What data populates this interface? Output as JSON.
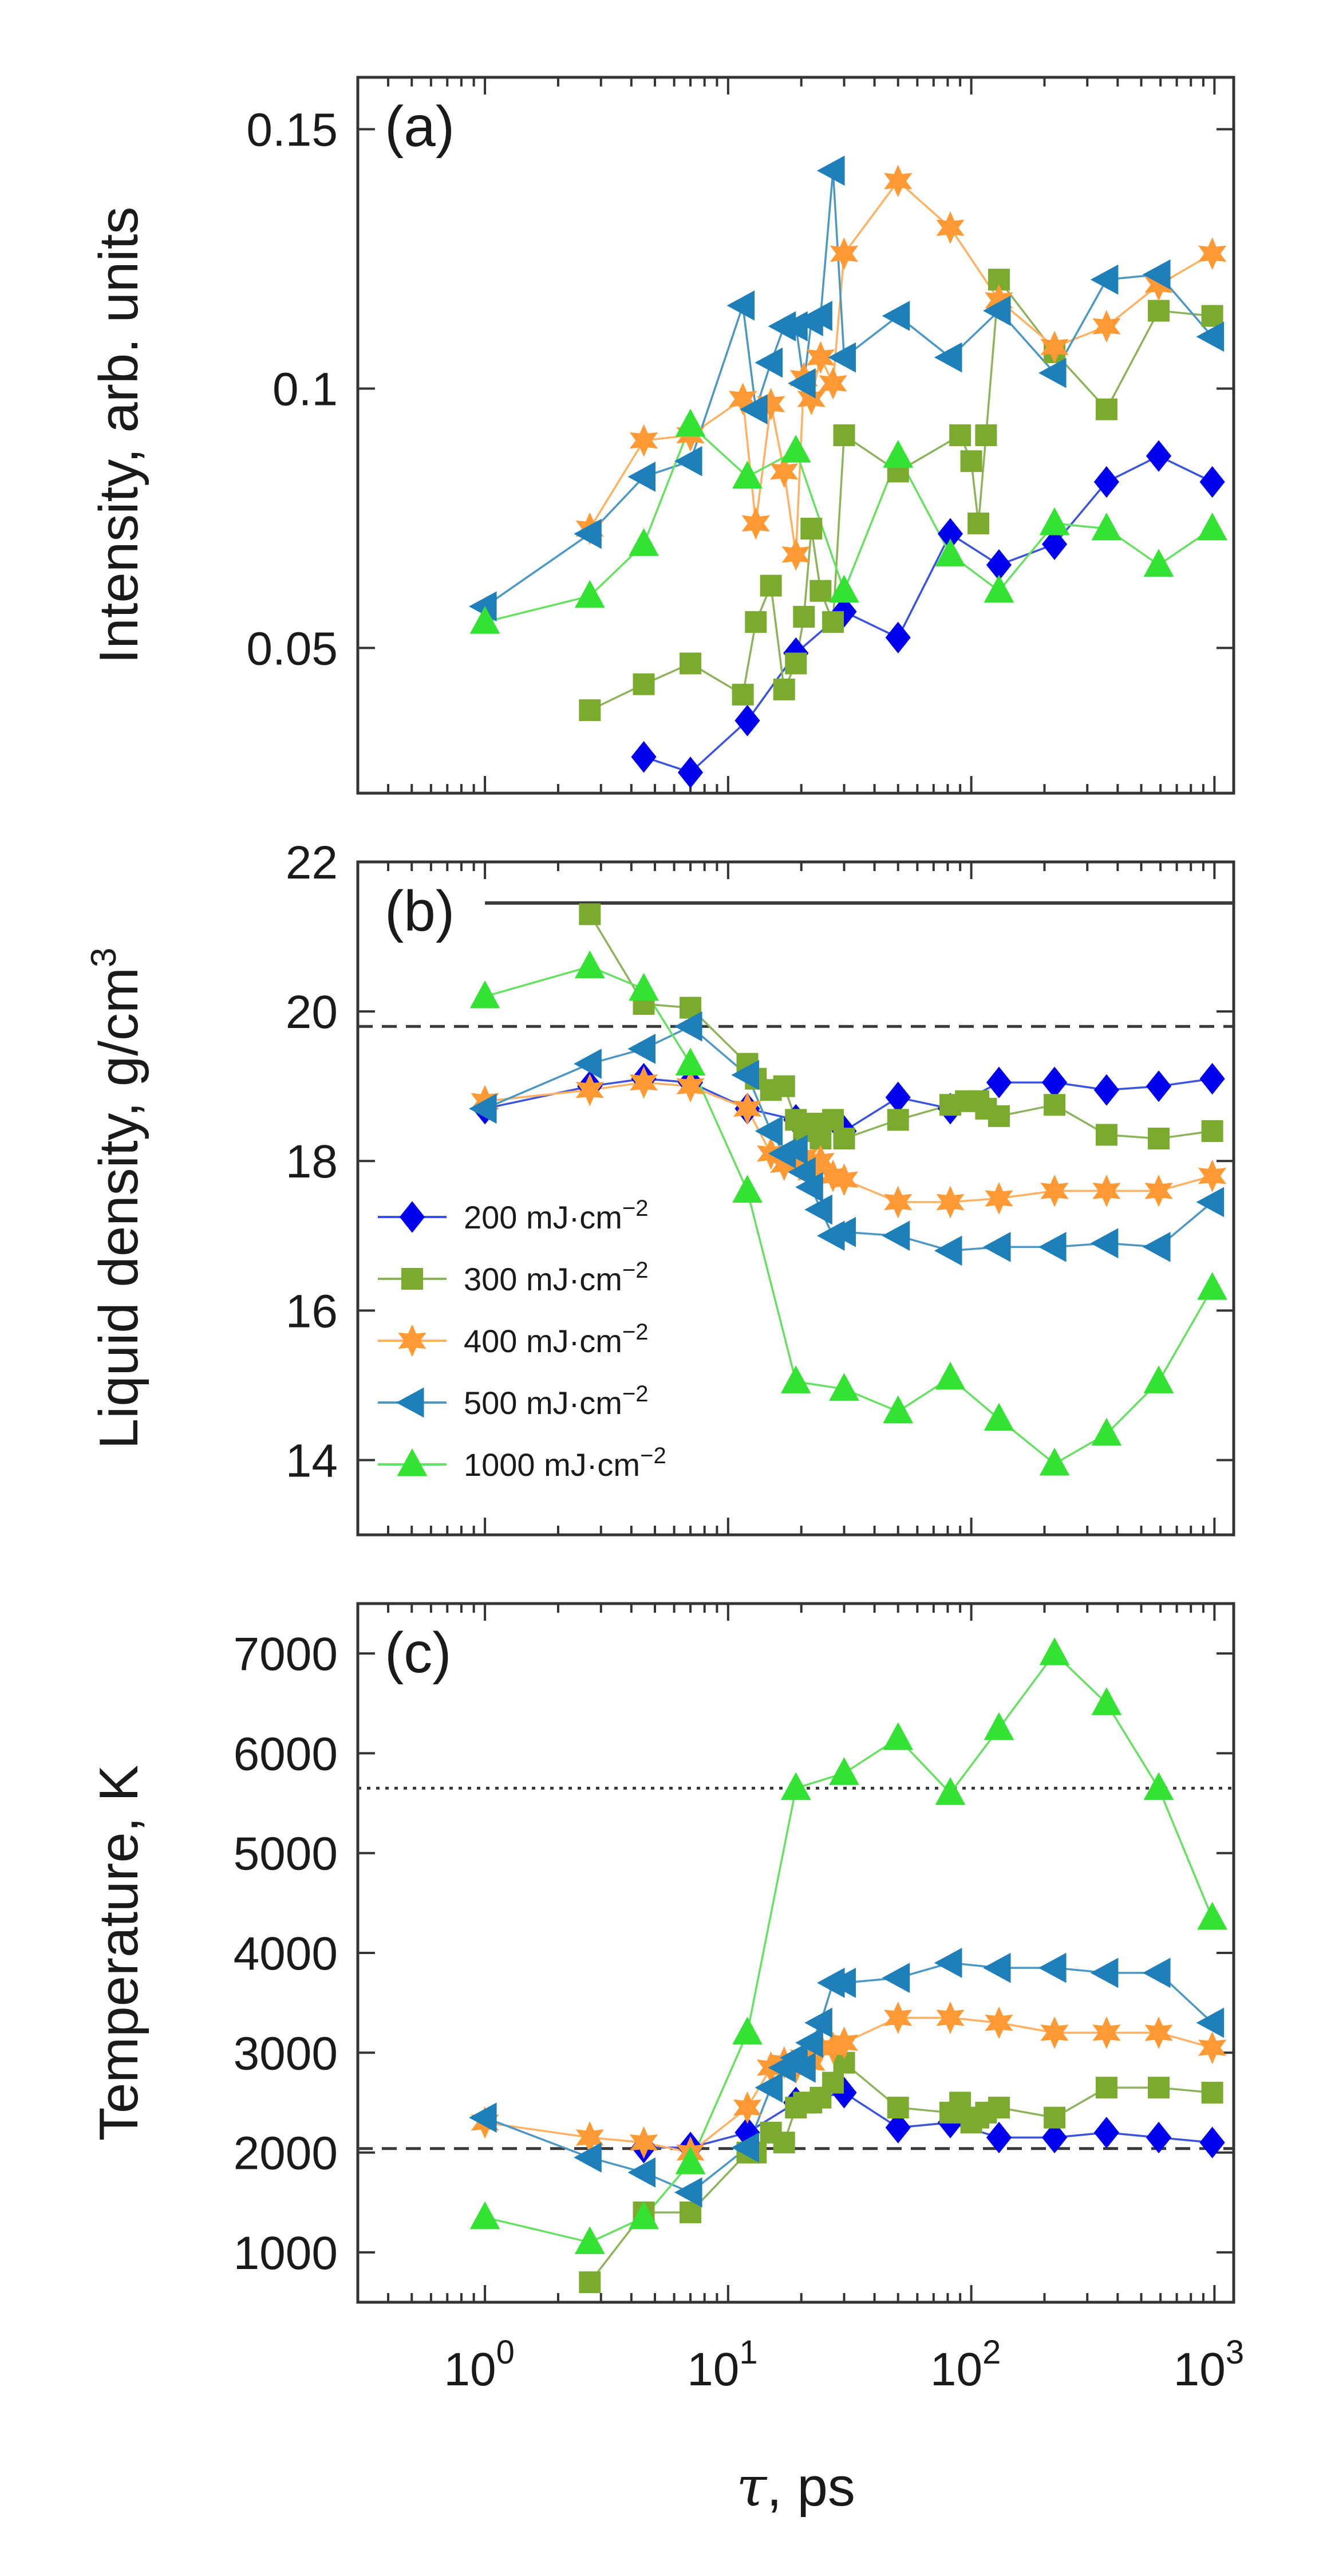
{
  "chart_data": [
    {
      "type": "line",
      "panel_label": "(a)",
      "ylabel": "Intensity, arb. units",
      "xscale": "log",
      "xlim": [
        0.3,
        1200
      ],
      "ylim": [
        0.022,
        0.16
      ],
      "yticks": [
        {
          "v": 0.05,
          "label": "0.05"
        },
        {
          "v": 0.1,
          "label": "0.1"
        },
        {
          "v": 0.15,
          "label": "0.15"
        }
      ],
      "series": [
        {
          "name": "200 mJ·cm⁻²",
          "x": [
            4.5,
            7,
            12,
            19,
            30,
            50,
            82,
            130,
            220,
            360,
            590,
            980
          ],
          "y": [
            0.029,
            0.026,
            0.036,
            0.049,
            0.057,
            0.052,
            0.072,
            0.066,
            0.07,
            0.082,
            0.087,
            0.082
          ]
        },
        {
          "name": "300 mJ·cm⁻²",
          "x": [
            2.7,
            4.5,
            7,
            11.5,
            13,
            15,
            17,
            19,
            20.5,
            22,
            24,
            27,
            30,
            50,
            90,
            100,
            107,
            115,
            130,
            220,
            360,
            590,
            980
          ],
          "y": [
            0.038,
            0.043,
            0.047,
            0.041,
            0.055,
            0.062,
            0.042,
            0.047,
            0.056,
            0.073,
            0.061,
            0.055,
            0.091,
            0.084,
            0.091,
            0.086,
            0.074,
            0.091,
            0.121,
            0.107,
            0.096,
            0.115,
            0.114
          ]
        },
        {
          "name": "400 mJ·cm⁻²",
          "x": [
            2.7,
            4.5,
            7,
            11.5,
            13,
            15,
            17,
            19,
            20.5,
            22,
            24,
            27,
            30,
            50,
            82,
            130,
            220,
            360,
            590,
            980
          ],
          "y": [
            0.073,
            0.09,
            0.091,
            0.098,
            0.074,
            0.097,
            0.084,
            0.068,
            0.102,
            0.098,
            0.106,
            0.101,
            0.126,
            0.14,
            0.131,
            0.117,
            0.108,
            0.112,
            0.12,
            0.126
          ]
        },
        {
          "name": "500 mJ·cm⁻²",
          "x": [
            1,
            2.7,
            4.5,
            7,
            11.5,
            13,
            15,
            17,
            19,
            20.5,
            22,
            24,
            27,
            30,
            50,
            82,
            130,
            220,
            360,
            590,
            980
          ],
          "y": [
            0.058,
            0.072,
            0.083,
            0.086,
            0.116,
            0.096,
            0.105,
            0.112,
            0.112,
            0.101,
            0.113,
            0.114,
            0.142,
            0.106,
            0.114,
            0.106,
            0.115,
            0.103,
            0.121,
            0.122,
            0.11
          ]
        },
        {
          "name": "1000 mJ·cm⁻²",
          "x": [
            1,
            2.7,
            4.5,
            7,
            12,
            19,
            30,
            50,
            82,
            130,
            220,
            360,
            590,
            980
          ],
          "y": [
            0.055,
            0.06,
            0.07,
            0.093,
            0.083,
            0.088,
            0.061,
            0.087,
            0.068,
            0.061,
            0.074,
            0.073,
            0.066,
            0.073
          ]
        }
      ]
    },
    {
      "type": "line",
      "panel_label": "(b)",
      "ylabel": "Liquid density, g/cm",
      "ylabel_superscript": "3",
      "xscale": "log",
      "xlim": [
        0.3,
        1200
      ],
      "ylim": [
        13,
        22
      ],
      "yticks": [
        {
          "v": 14,
          "label": "14"
        },
        {
          "v": 16,
          "label": "16"
        },
        {
          "v": 18,
          "label": "18"
        },
        {
          "v": 20,
          "label": "20"
        },
        {
          "v": 22,
          "label": "22"
        }
      ],
      "reference_lines": [
        {
          "name": "solid-density-line",
          "y": 21.45,
          "style": "solid",
          "x_from": 1
        },
        {
          "name": "melt-density-line",
          "y": 19.8,
          "style": "dashed"
        }
      ],
      "legend": {
        "position": "lower-left",
        "entries": [
          {
            "text": "200 mJ·cm",
            "sup": "−2"
          },
          {
            "text": "300 mJ·cm",
            "sup": "−2"
          },
          {
            "text": "400 mJ·cm",
            "sup": "−2"
          },
          {
            "text": "500 mJ·cm",
            "sup": "−2"
          },
          {
            "text": "1000 mJ·cm",
            "sup": "−2"
          }
        ]
      },
      "series": [
        {
          "name": "200 mJ·cm⁻²",
          "x": [
            1,
            2.7,
            4.5,
            7,
            12,
            19,
            30,
            50,
            82,
            130,
            220,
            360,
            590,
            980
          ],
          "y": [
            18.7,
            19.0,
            19.1,
            19.05,
            18.7,
            18.55,
            18.4,
            18.85,
            18.7,
            19.05,
            19.05,
            18.95,
            19.0,
            19.1
          ]
        },
        {
          "name": "300 mJ·cm⁻²",
          "x": [
            2.7,
            4.5,
            7,
            12,
            13,
            15,
            17,
            19,
            20.5,
            22,
            24,
            27,
            30,
            50,
            82,
            95,
            107,
            115,
            130,
            220,
            360,
            590,
            980
          ],
          "y": [
            21.3,
            20.1,
            20.05,
            19.3,
            19.1,
            18.95,
            19.0,
            18.55,
            18.4,
            18.5,
            18.3,
            18.55,
            18.3,
            18.55,
            18.75,
            18.8,
            18.8,
            18.7,
            18.6,
            18.75,
            18.35,
            18.3,
            18.4
          ]
        },
        {
          "name": "400 mJ·cm⁻²",
          "x": [
            1,
            2.7,
            4.5,
            7,
            12,
            15,
            17,
            19,
            20.5,
            22,
            24,
            27,
            30,
            50,
            82,
            130,
            220,
            360,
            590,
            980
          ],
          "y": [
            18.8,
            18.95,
            19.05,
            19.0,
            18.7,
            18.1,
            17.95,
            18.0,
            18.05,
            17.85,
            18.0,
            17.8,
            17.75,
            17.45,
            17.45,
            17.5,
            17.6,
            17.6,
            17.6,
            17.8
          ]
        },
        {
          "name": "500 mJ·cm⁻²",
          "x": [
            1,
            2.7,
            4.5,
            7,
            12,
            15,
            17,
            19,
            20.5,
            22,
            24,
            27,
            30,
            50,
            82,
            130,
            220,
            360,
            590,
            980
          ],
          "y": [
            18.7,
            19.3,
            19.5,
            19.8,
            19.15,
            18.4,
            18.1,
            18.15,
            17.85,
            17.65,
            17.35,
            17.0,
            17.05,
            17.0,
            16.8,
            16.85,
            16.85,
            16.9,
            16.85,
            17.45
          ]
        },
        {
          "name": "1000 mJ·cm⁻²",
          "x": [
            1,
            2.7,
            4.5,
            7,
            12,
            19,
            30,
            50,
            82,
            130,
            220,
            360,
            590,
            980
          ],
          "y": [
            20.2,
            20.6,
            20.3,
            19.3,
            17.6,
            15.05,
            14.95,
            14.65,
            15.1,
            14.55,
            13.95,
            14.35,
            15.05,
            16.3
          ]
        }
      ]
    },
    {
      "type": "line",
      "panel_label": "(c)",
      "ylabel": "Temperature, K",
      "xlabel_symbol": "τ",
      "xlabel": ", ps",
      "xscale": "log",
      "xlim": [
        0.3,
        1200
      ],
      "ylim": [
        500,
        7500
      ],
      "yticks": [
        {
          "v": 1000,
          "label": "1000"
        },
        {
          "v": 2000,
          "label": "2000"
        },
        {
          "v": 3000,
          "label": "3000"
        },
        {
          "v": 4000,
          "label": "4000"
        },
        {
          "v": 5000,
          "label": "5000"
        },
        {
          "v": 6000,
          "label": "6000"
        },
        {
          "v": 7000,
          "label": "7000"
        }
      ],
      "xticks": [
        {
          "v": 1,
          "base": "10",
          "exp": "0"
        },
        {
          "v": 10,
          "base": "10",
          "exp": "1"
        },
        {
          "v": 100,
          "base": "10",
          "exp": "2"
        },
        {
          "v": 1000,
          "base": "10",
          "exp": "3"
        }
      ],
      "reference_lines": [
        {
          "name": "critical-temperature-line",
          "y": 5650,
          "style": "dotted"
        },
        {
          "name": "melting-temperature-line",
          "y": 2040,
          "style": "dashed"
        }
      ],
      "series": [
        {
          "name": "200 mJ·cm⁻²",
          "x": [
            4.5,
            7,
            12,
            19,
            30,
            50,
            82,
            130,
            220,
            360,
            590,
            980
          ],
          "y": [
            2050,
            2050,
            2200,
            2500,
            2600,
            2250,
            2300,
            2150,
            2150,
            2200,
            2150,
            2100
          ]
        },
        {
          "name": "300 mJ·cm⁻²",
          "x": [
            2.7,
            4.5,
            7,
            12,
            13,
            15,
            17,
            19,
            20.5,
            22,
            24,
            27,
            30,
            50,
            82,
            90,
            100,
            107,
            115,
            130,
            220,
            360,
            590,
            980
          ],
          "y": [
            700,
            1400,
            1400,
            2000,
            2000,
            2200,
            2100,
            2450,
            2500,
            2500,
            2550,
            2700,
            2900,
            2450,
            2400,
            2500,
            2300,
            2350,
            2400,
            2450,
            2350,
            2650,
            2650,
            2600
          ]
        },
        {
          "name": "400 mJ·cm⁻²",
          "x": [
            1,
            2.7,
            4.5,
            7,
            12,
            15,
            17,
            19,
            20.5,
            22,
            24,
            27,
            30,
            50,
            82,
            130,
            220,
            360,
            590,
            980
          ],
          "y": [
            2300,
            2150,
            2100,
            2000,
            2450,
            2850,
            2900,
            2850,
            2950,
            2900,
            3050,
            3050,
            3100,
            3350,
            3350,
            3300,
            3200,
            3200,
            3200,
            3050
          ]
        },
        {
          "name": "500 mJ·cm⁻²",
          "x": [
            1,
            2.7,
            4.5,
            7,
            12,
            15,
            17,
            19,
            20.5,
            22,
            24,
            27,
            30,
            50,
            82,
            130,
            220,
            360,
            590,
            980
          ],
          "y": [
            2350,
            1950,
            1800,
            1600,
            2050,
            2650,
            2850,
            2950,
            2850,
            3100,
            3300,
            3700,
            3700,
            3750,
            3900,
            3850,
            3850,
            3800,
            3800,
            3300
          ]
        },
        {
          "name": "1000 mJ·cm⁻²",
          "x": [
            1,
            2.7,
            4.5,
            7,
            12,
            19,
            30,
            50,
            82,
            130,
            220,
            360,
            590,
            980
          ],
          "y": [
            1350,
            1100,
            1350,
            1900,
            3200,
            5650,
            5800,
            6150,
            5600,
            6250,
            7000,
            6500,
            5650,
            4350
          ]
        }
      ]
    }
  ],
  "colors": {
    "series": [
      "#0000ee",
      "#7aab2e",
      "#ff9933",
      "#1f7fb8",
      "#33e233"
    ],
    "series_line": [
      "#3a52e0",
      "#8cb35a",
      "#ffb060",
      "#4a97c4",
      "#66e060"
    ],
    "axis": "#333333",
    "reference": "#3a3a3a"
  },
  "markers": [
    "diamond",
    "square",
    "star",
    "triangle-left",
    "triangle-up"
  ]
}
